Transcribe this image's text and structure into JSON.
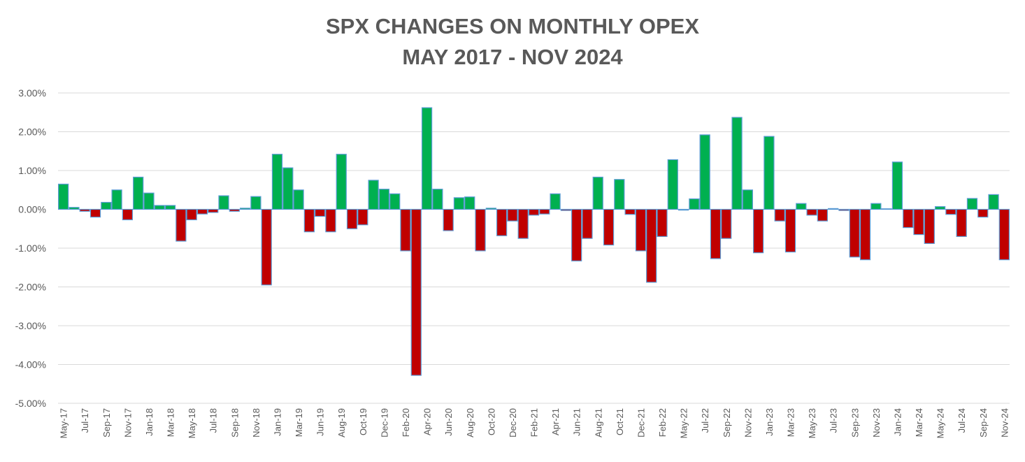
{
  "chart_data": {
    "type": "bar",
    "title": "SPX CHANGES ON MONTHLY OPEX",
    "subtitle": "MAY 2017 - NOV 2024",
    "xlabel": "",
    "ylabel": "",
    "ylim": [
      -5,
      3
    ],
    "yticks": [
      "3.00%",
      "2.00%",
      "1.00%",
      "0.00%",
      "-1.00%",
      "-2.00%",
      "-3.00%",
      "-4.00%",
      "-5.00%"
    ],
    "grid": true,
    "legend": "none",
    "positive_color": "#00b050",
    "negative_color": "#c00000",
    "border_color": "#5b9bd5",
    "grid_color": "#d9d9d9",
    "tick_labels": [
      "May-17",
      "Jul-17",
      "Sep-17",
      "Nov-17",
      "Jan-18",
      "Mar-18",
      "May-18",
      "Jul-18",
      "Sep-18",
      "Nov-18",
      "Jan-19",
      "Mar-19",
      "Jun-19",
      "Aug-19",
      "Oct-19",
      "Dec-19",
      "Feb-20",
      "Apr-20",
      "Jun-20",
      "Aug-20",
      "Oct-20",
      "Dec-20",
      "Feb-21",
      "Apr-21",
      "Jun-21",
      "Aug-21",
      "Oct-21",
      "Dec-21",
      "Feb-22",
      "May-22",
      "Jul-22",
      "Sep-22",
      "Nov-22",
      "Jan-23",
      "Mar-23",
      "May-23",
      "Jul-23",
      "Sep-23",
      "Nov-23",
      "Jan-24",
      "Mar-24",
      "May-24",
      "Jul-24",
      "Sep-24",
      "Nov-24"
    ],
    "values": [
      0.65,
      0.05,
      -0.05,
      -0.2,
      0.18,
      0.5,
      -0.27,
      0.83,
      0.42,
      0.1,
      0.1,
      -0.82,
      -0.27,
      -0.12,
      -0.08,
      0.35,
      -0.05,
      0.03,
      0.33,
      -1.95,
      1.42,
      1.07,
      0.5,
      -0.58,
      -0.18,
      -0.58,
      1.42,
      -0.5,
      -0.4,
      0.75,
      0.52,
      0.4,
      -1.07,
      -4.28,
      2.62,
      0.52,
      -0.55,
      0.3,
      0.32,
      -1.07,
      0.03,
      -0.68,
      -0.3,
      -0.75,
      -0.15,
      -0.12,
      0.4,
      -0.03,
      -1.33,
      -0.75,
      0.83,
      -0.92,
      0.77,
      -0.13,
      -1.07,
      -1.88,
      -0.7,
      1.28,
      -0.02,
      0.27,
      1.92,
      -1.27,
      -0.75,
      2.37,
      0.5,
      -1.12,
      1.88,
      -0.3,
      -1.1,
      0.15,
      -0.15,
      -0.3,
      0.02,
      -0.03,
      -1.23,
      -1.3,
      0.15,
      0.0,
      1.22,
      -0.47,
      -0.65,
      -0.88,
      0.07,
      -0.13,
      -0.7,
      0.28,
      -0.2,
      0.38,
      -1.3
    ]
  }
}
